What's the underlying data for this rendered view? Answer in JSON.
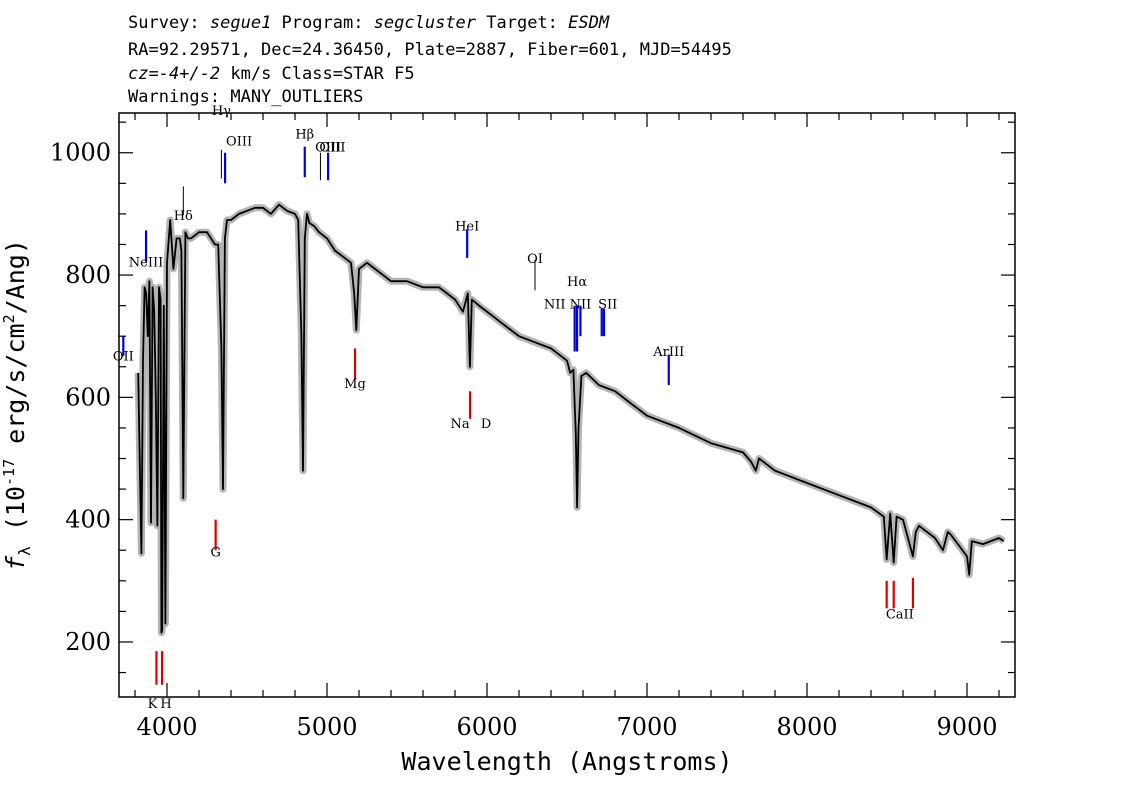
{
  "header": {
    "line1": [
      {
        "text": "Survey: ",
        "italic": false
      },
      {
        "text": "segue1",
        "italic": true
      },
      {
        "text": " Program: ",
        "italic": false
      },
      {
        "text": "segcluster",
        "italic": true
      },
      {
        "text": " Target: ",
        "italic": false
      },
      {
        "text": "ESDM",
        "italic": true
      }
    ],
    "line2": "RA=92.29571, Dec=24.36450, Plate=2887, Fiber=601, MJD=54495",
    "line3": [
      {
        "text": "cz=-4+/-2",
        "italic": true
      },
      {
        "text": " km/s Class=STAR F5",
        "italic": false
      }
    ],
    "line4": "Warnings: MANY_OUTLIERS"
  },
  "colors": {
    "flux": "#000000",
    "error_band": "#b4b4b4",
    "emission": "#0000dd",
    "absorption": "#dd0000",
    "axes": "#000000"
  },
  "chart_data": {
    "type": "line",
    "xlabel": "Wavelength (Angstroms)",
    "ylabel": "f_λ (10^-17 erg/s/cm^2/Ang)",
    "xlim": [
      3700,
      9300
    ],
    "ylim": [
      110,
      1065
    ],
    "xticks": [
      4000,
      5000,
      6000,
      7000,
      8000,
      9000
    ],
    "yticks": [
      200,
      400,
      600,
      800,
      1000
    ],
    "grid": false,
    "series": [
      {
        "x": [
          3820,
          3840,
          3850,
          3860,
          3870,
          3880,
          3890,
          3900,
          3910,
          3920,
          3930,
          3940,
          3950,
          3960,
          3965,
          3970,
          3980,
          3990,
          4000,
          4020,
          4040,
          4060,
          4080,
          4090,
          4102,
          4115,
          4130,
          4150,
          4200,
          4250,
          4300,
          4320,
          4340,
          4350,
          4362,
          4375,
          4400,
          4450,
          4500,
          4550,
          4600,
          4650,
          4700,
          4750,
          4800,
          4820,
          4840,
          4850,
          4861,
          4875,
          4890,
          4920,
          4950,
          5000,
          5050,
          5100,
          5150,
          5170,
          5183,
          5200,
          5250,
          5300,
          5400,
          5500,
          5600,
          5700,
          5800,
          5850,
          5880,
          5893,
          5905,
          5950,
          6000,
          6100,
          6200,
          6300,
          6400,
          6500,
          6520,
          6540,
          6555,
          6563,
          6572,
          6590,
          6620,
          6700,
          6800,
          6900,
          7000,
          7200,
          7400,
          7600,
          7650,
          7680,
          7700,
          7800,
          8000,
          8200,
          8400,
          8480,
          8498,
          8520,
          8542,
          8560,
          8600,
          8662,
          8680,
          8700,
          8800,
          8850,
          8880,
          8900,
          9000,
          9014,
          9030,
          9100,
          9200,
          9230
        ],
        "y": [
          640,
          345,
          660,
          780,
          770,
          700,
          790,
          395,
          780,
          740,
          600,
          390,
          780,
          760,
          215,
          220,
          750,
          230,
          820,
          890,
          810,
          860,
          860,
          840,
          435,
          870,
          860,
          860,
          870,
          870,
          850,
          850,
          680,
          450,
          860,
          890,
          890,
          900,
          905,
          910,
          910,
          900,
          915,
          905,
          900,
          890,
          700,
          480,
          860,
          900,
          885,
          880,
          870,
          860,
          840,
          830,
          820,
          770,
          710,
          810,
          820,
          810,
          790,
          790,
          780,
          780,
          760,
          740,
          770,
          650,
          760,
          750,
          740,
          720,
          700,
          690,
          680,
          660,
          640,
          645,
          540,
          420,
          550,
          635,
          640,
          620,
          610,
          590,
          570,
          550,
          525,
          510,
          495,
          480,
          500,
          480,
          460,
          440,
          420,
          405,
          335,
          410,
          330,
          405,
          400,
          340,
          380,
          390,
          370,
          350,
          380,
          375,
          340,
          310,
          365,
          360,
          370,
          365
        ]
      }
    ],
    "emission_lines": [
      {
        "label": "OII",
        "x": 3727
      },
      {
        "label": "NeIII",
        "x": 3869
      },
      {
        "label": "Hδ",
        "x": 4102
      },
      {
        "label": "Hγ",
        "x": 4340
      },
      {
        "label": "OIII",
        "x": 4363
      },
      {
        "label": "Hβ",
        "x": 4861
      },
      {
        "label": "OIII",
        "x": 4959
      },
      {
        "label": "OIII",
        "x": 5007
      },
      {
        "label": "HeI",
        "x": 5876
      },
      {
        "label": "OI",
        "x": 6300
      },
      {
        "label": "NII",
        "x": 6548
      },
      {
        "label": "Hα",
        "x": 6563
      },
      {
        "label": "NII",
        "x": 6584
      },
      {
        "label": "SII",
        "x": 6717
      },
      {
        "label": "SII",
        "x": 6731
      },
      {
        "label": "ArIII",
        "x": 7136
      }
    ],
    "absorption_lines": [
      {
        "label": "K",
        "x": 3934
      },
      {
        "label": "H",
        "x": 3969
      },
      {
        "label": "G",
        "x": 4304
      },
      {
        "label": "Mg",
        "x": 5175
      },
      {
        "label": "Na",
        "x": 5894
      },
      {
        "label": "D",
        "x": 5894
      },
      {
        "label": "CaII",
        "x": 8498
      },
      {
        "label": "CaII",
        "x": 8542
      },
      {
        "label": "CaII",
        "x": 8662
      }
    ]
  }
}
